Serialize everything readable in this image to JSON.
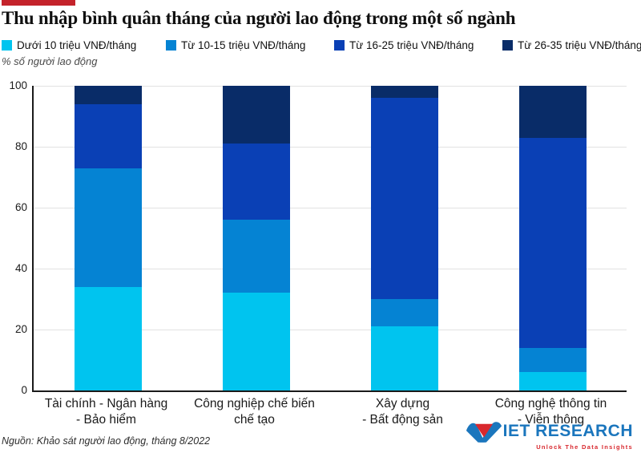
{
  "header": {
    "accent_color": "#c4232b"
  },
  "chart_data": {
    "type": "bar",
    "variant": "stacked-100-percent",
    "title": "Thu nhập bình quân tháng của người lao động trong một số ngành",
    "ylabel": "% số người lao động",
    "xlabel": "",
    "ylim": [
      0,
      100
    ],
    "yticks": [
      0,
      20,
      40,
      60,
      80,
      100
    ],
    "grid": true,
    "legend_position": "top",
    "categories": [
      [
        "Tài chính - Ngân hàng",
        "- Bảo hiểm"
      ],
      [
        "Công nghiệp chế biến",
        "chế tạo"
      ],
      [
        "Xây dựng",
        "- Bất động sản"
      ],
      [
        "Công nghệ thông tin",
        "- Viễn thông"
      ]
    ],
    "series": [
      {
        "name": "Dưới 10 triệu VNĐ/tháng",
        "color": "#00c4ef",
        "values": [
          34,
          32,
          21,
          6
        ]
      },
      {
        "name": "Từ 10-15 triệu VNĐ/tháng",
        "color": "#0583d3",
        "values": [
          39,
          24,
          9,
          8
        ]
      },
      {
        "name": "Từ 16-25 triệu VNĐ/tháng",
        "color": "#0a40b5",
        "values": [
          21,
          25,
          66,
          69
        ]
      },
      {
        "name": "Từ 26-35 triệu VNĐ/tháng",
        "color": "#092c68",
        "values": [
          6,
          19,
          4,
          17
        ]
      }
    ]
  },
  "footer": {
    "source": "Nguồn: Khảo sát người lao động, tháng 8/2022",
    "logo": {
      "name": "VIET RESEARCH",
      "name_after_mark": "IET RESEARCH",
      "tagline": "Unlock The Data Insights",
      "blue": "#1b76bd",
      "red": "#d8282e"
    }
  }
}
